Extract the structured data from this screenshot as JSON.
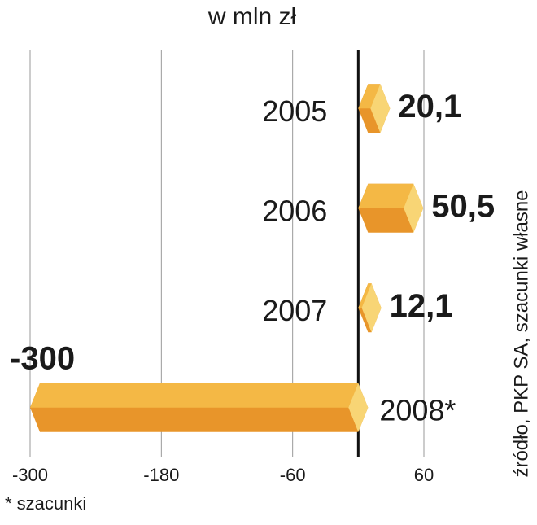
{
  "chart_data": {
    "type": "bar",
    "orientation": "horizontal",
    "title": "w mln zł",
    "categories": [
      "2005",
      "2006",
      "2007",
      "2008*"
    ],
    "values": [
      20.1,
      50.5,
      12.1,
      -300
    ],
    "value_labels": [
      "20,1",
      "50,5",
      "12,1",
      "-300"
    ],
    "color": "#f0a83a",
    "xlim": [
      -300,
      60
    ],
    "xticks": [
      -300,
      -180,
      -60,
      60
    ],
    "grid": true,
    "source": "źródło, PKP SA, szacunki własne",
    "footnote": "* szacunki"
  }
}
